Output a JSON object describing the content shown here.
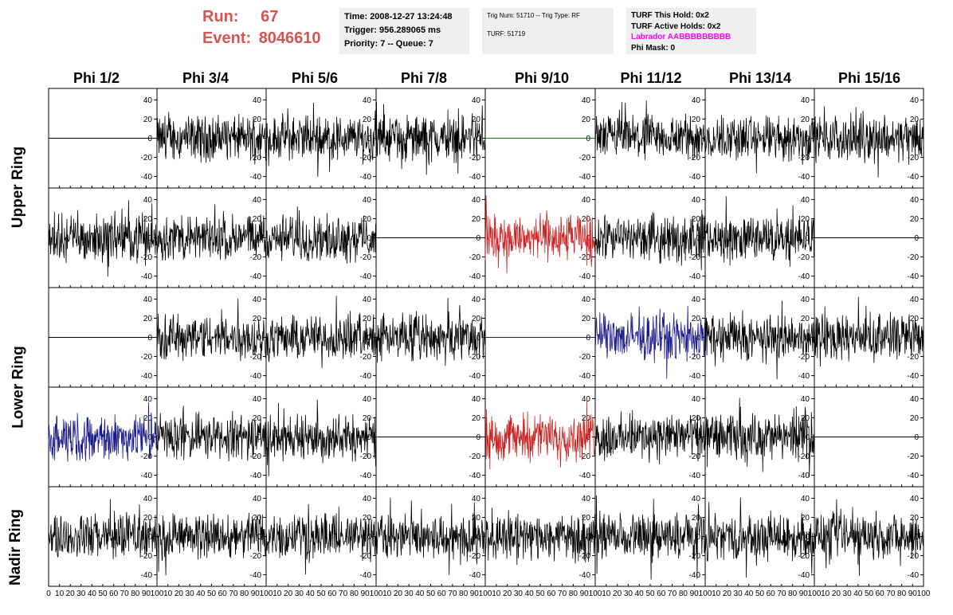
{
  "header": {
    "run_label": "Run:",
    "run_value": "67",
    "event_label": "Event:",
    "event_value": "8046610"
  },
  "info_boxes": {
    "time": "Time: 2008-12-27 13:24:48",
    "trigger": "Trigger: 956.289065 ms",
    "priority": "Priority: 7 -- Queue: 7",
    "trig_num": "Trig Num: 51710 -- Trig Type: RF",
    "turf": "TURF: 51719",
    "turf_this_hold": "TURF This Hold: 0x2",
    "turf_active_holds": "TURF Active Holds: 0x2",
    "labrador": "Labrador AABBBBBBBBB",
    "phi_mask": "Phi Mask: 0"
  },
  "chart_data": {
    "type": "line",
    "columns": [
      "Phi 1/2",
      "Phi 3/4",
      "Phi 5/6",
      "Phi 7/8",
      "Phi 9/10",
      "Phi 11/12",
      "Phi 13/14",
      "Phi 15/16"
    ],
    "rows": [
      "Upper Ring",
      "Upper Ring",
      "Lower Ring",
      "Lower Ring",
      "Nadir Ring"
    ],
    "row_labels": [
      "Upper Ring",
      "Lower Ring",
      "Nadir Ring"
    ],
    "x_ticks": [
      0,
      10,
      20,
      30,
      40,
      50,
      60,
      70,
      80,
      90,
      100
    ],
    "x_tick_labels": [
      "0",
      "10",
      "20",
      "30",
      "40",
      "50",
      "60",
      "70",
      "80",
      "90",
      "100"
    ],
    "y_ticks": [
      40,
      20,
      0,
      -20,
      -40
    ],
    "y_tick_labels": [
      "40",
      "20",
      "0",
      "-20",
      "-40"
    ],
    "xlim": [
      0,
      100
    ],
    "ylim": [
      -52,
      52
    ],
    "colors": {
      "normal": "#000000",
      "red": "#cc2222",
      "blue": "#1a1a8c",
      "green": "#1a7a1a"
    },
    "panels": [
      [
        "flat",
        "wave",
        "wave",
        "wave",
        "flat-green",
        "wave",
        "wave",
        "wave"
      ],
      [
        "wave",
        "wave",
        "wave",
        "flat",
        "red",
        "wave",
        "wave",
        "flat"
      ],
      [
        "flat",
        "wave",
        "wave",
        "wave",
        "flat-blue",
        "blue",
        "wave",
        "wave"
      ],
      [
        "blue",
        "wave",
        "wave",
        "flat",
        "red",
        "wave",
        "wave",
        "flat"
      ],
      [
        "wave",
        "wave",
        "wave",
        "wave",
        "wave",
        "wave",
        "wave",
        "wave"
      ]
    ],
    "amplitude_note": "waveforms approximately within +/-30, peaks to +/-45"
  }
}
